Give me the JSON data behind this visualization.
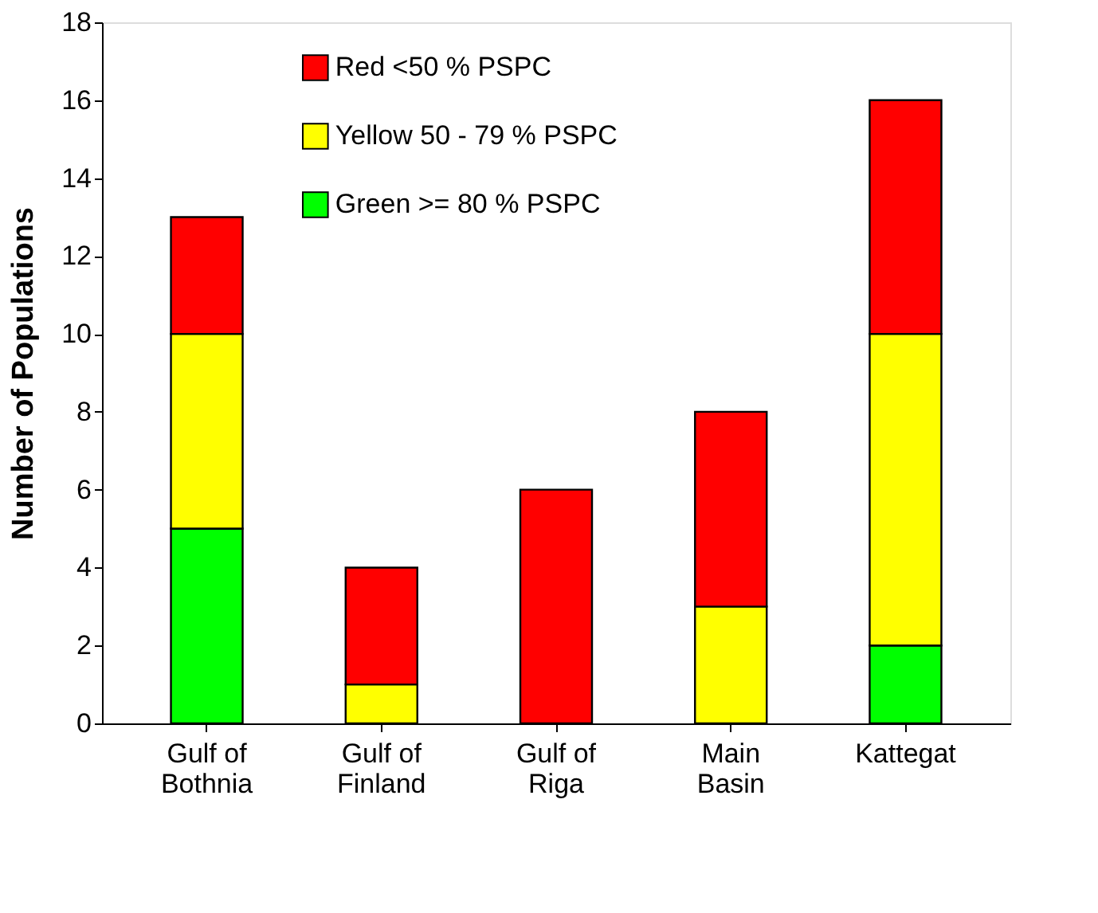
{
  "chart_data": {
    "type": "bar",
    "ylabel": "Number of Populations",
    "stacked": true,
    "legend": "top",
    "grid": false,
    "categories": [
      "Gulf of Bothnia",
      "Gulf of Finland",
      "Gulf of Riga",
      "Main Basin",
      "Kattegat"
    ],
    "series": [
      {
        "name": "Green >= 80 % PSPC",
        "color": "#00ff00",
        "values": [
          5,
          0,
          0,
          0,
          2
        ]
      },
      {
        "name": "Yellow 50 - 79 % PSPC",
        "color": "#ffff00",
        "values": [
          5,
          1,
          0,
          3,
          8
        ]
      },
      {
        "name": "Red <50 % PSPC",
        "color": "#ff0000",
        "values": [
          3,
          3,
          6,
          5,
          6
        ]
      }
    ],
    "ylim": [
      0,
      18
    ],
    "yticks": [
      0,
      2,
      4,
      6,
      8,
      10,
      12,
      14,
      16,
      18
    ]
  }
}
